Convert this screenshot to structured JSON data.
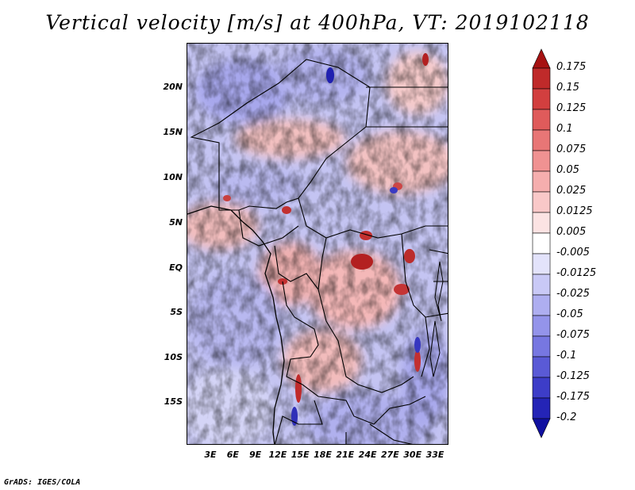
{
  "title": "Vertical velocity [m/s] at 400hPa, VT: 2019102118",
  "credit": "GrADS: IGES/COLA",
  "map": {
    "lon_range": [
      0,
      35
    ],
    "lat_range": [
      -19,
      25
    ],
    "lat_labels": [
      "20N",
      "15N",
      "10N",
      "5N",
      "EQ",
      "5S",
      "10S",
      "15S"
    ],
    "lon_labels": [
      "3E",
      "6E",
      "9E",
      "12E",
      "15E",
      "18E",
      "21E",
      "24E",
      "27E",
      "30E",
      "33E"
    ],
    "region": "Central Africa"
  },
  "colorbar": {
    "labels": [
      "0.175",
      "0.15",
      "0.125",
      "0.1",
      "0.075",
      "0.05",
      "0.025",
      "0.0125",
      "0.005",
      "-0.005",
      "-0.0125",
      "-0.025",
      "-0.05",
      "-0.075",
      "-0.1",
      "-0.125",
      "-0.175",
      "-0.2"
    ],
    "colors": [
      "#a61212",
      "#bf2a2a",
      "#d23f3f",
      "#df5b5b",
      "#e87676",
      "#f09292",
      "#f5aeae",
      "#f9c8c8",
      "#fce3e3",
      "#ffffff",
      "#e3e3fb",
      "#c9c9f6",
      "#aeaef0",
      "#9494ea",
      "#7777e1",
      "#5a5ad6",
      "#3d3dc8",
      "#2424b6",
      "#1010a0"
    ]
  }
}
